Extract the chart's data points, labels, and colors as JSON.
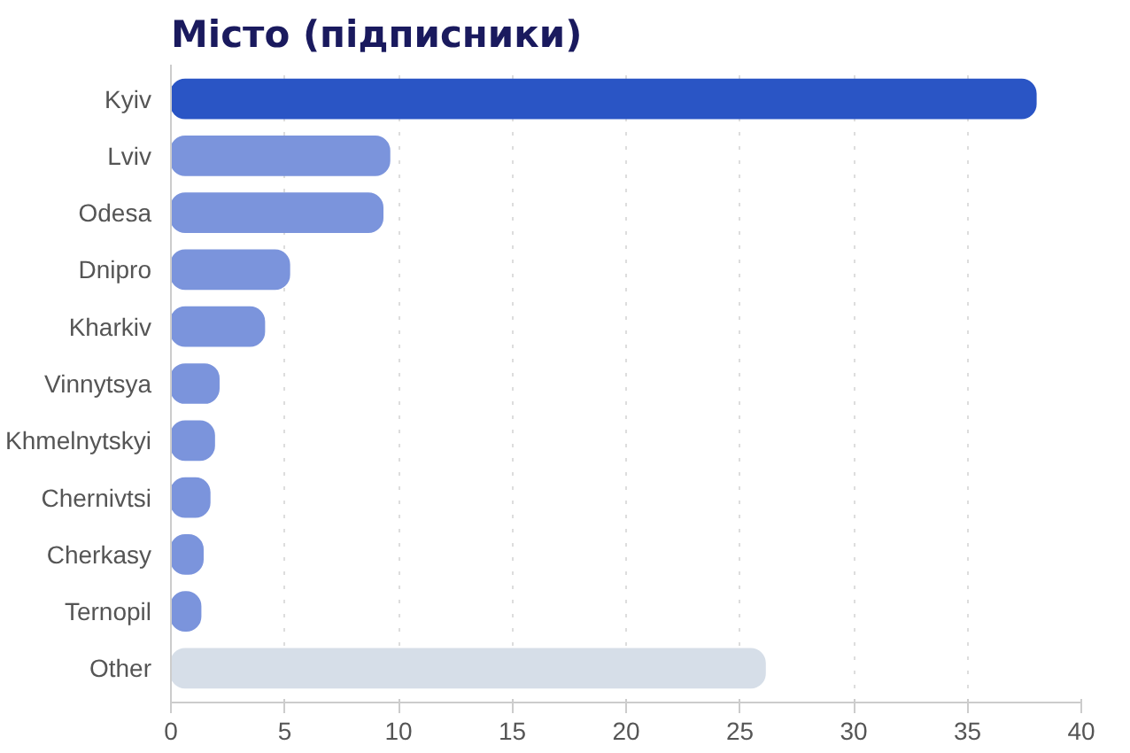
{
  "chart_data": {
    "type": "bar",
    "orientation": "horizontal",
    "title": "Місто (підписники)",
    "categories": [
      "Kyiv",
      "Lviv",
      "Odesa",
      "Dnipro",
      "Kharkiv",
      "Vinnytsya",
      "Khmelnytskyi",
      "Chernivtsi",
      "Cherkasy",
      "Ternopil",
      "Other"
    ],
    "values": [
      38,
      9.6,
      9.3,
      5.2,
      4.1,
      2.1,
      1.9,
      1.7,
      1.4,
      1.3,
      26.1
    ],
    "colors": [
      "#2a55c5",
      "#7b94dc",
      "#7b94dc",
      "#7b94dc",
      "#7b94dc",
      "#7b94dc",
      "#7b94dc",
      "#7b94dc",
      "#7b94dc",
      "#7b94dc",
      "#d6dee8"
    ],
    "xlim": [
      0,
      40
    ],
    "xticks": [
      0,
      5,
      10,
      15,
      20,
      25,
      30,
      35,
      40
    ],
    "grid": "x"
  }
}
